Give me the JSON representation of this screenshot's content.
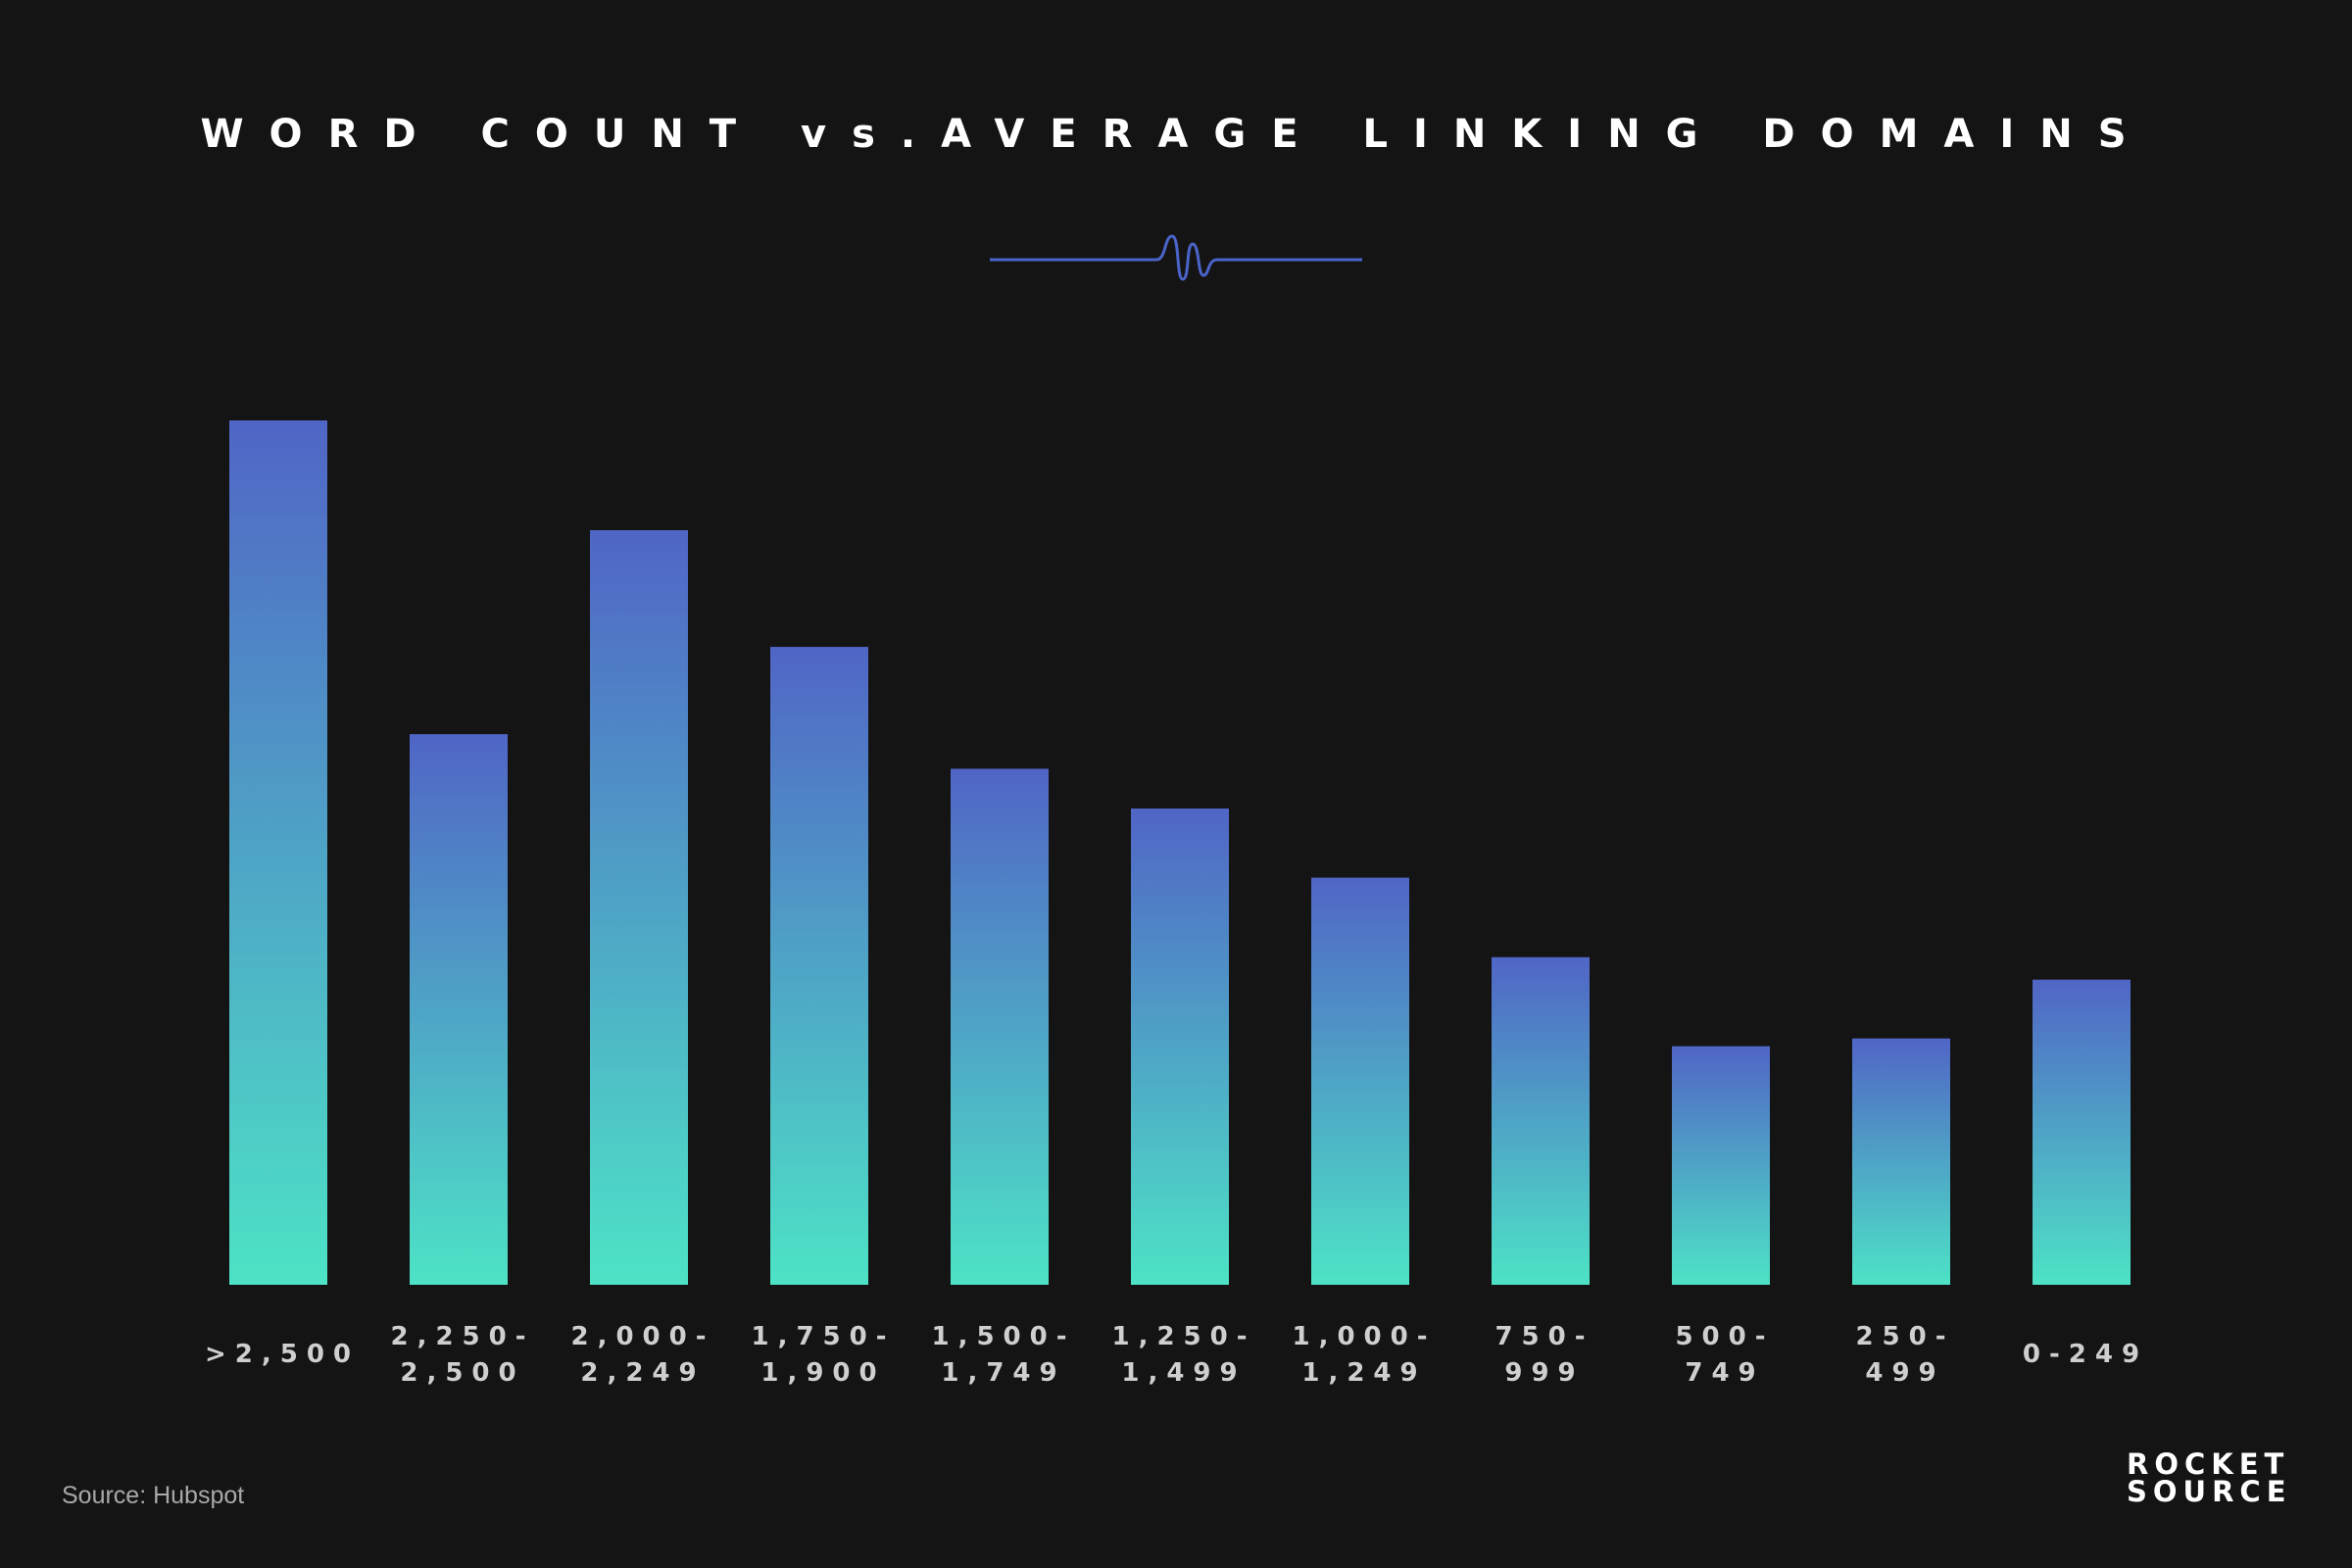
{
  "chart_data": {
    "type": "bar",
    "title": "WORD COUNT vs.AVERAGE LINKING DOMAINS",
    "xlabel": "",
    "ylabel": "",
    "categories": [
      ">2,500",
      "2,250-\n2,500",
      "2,000-\n2,249",
      "1,750-\n1,900",
      "1,500-\n1,749",
      "1,250-\n1,499",
      "1,000-\n1,249",
      "750-\n999",
      "500-\n749",
      "250-\n499",
      "0-249"
    ],
    "values": [
      100,
      63.7,
      87.3,
      73.8,
      59.7,
      55.1,
      47.1,
      37.9,
      27.6,
      28.5,
      35.3
    ],
    "ylim": [
      0,
      100
    ],
    "grid": false,
    "legend": "none",
    "colors": {
      "bar_top": "#5065c6",
      "bar_bottom": "#4de3c6",
      "background": "#141414",
      "title": "#ffffff",
      "tick_labels": "#cfcfcf"
    }
  },
  "source": "Source: Hubspot",
  "logo": {
    "line1": "ROCKET",
    "line2": "SOURCE",
    "accent_color": "#4de3c6"
  },
  "divider_icon": "sound-wave-icon"
}
